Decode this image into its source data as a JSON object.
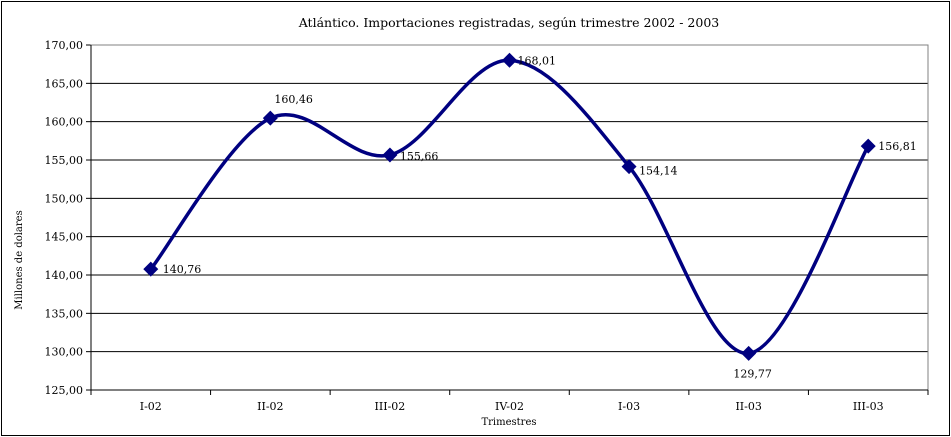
{
  "chart_data": {
    "type": "line",
    "title": "Atlántico. Importaciones registradas, según trimestre 2002 - 2003",
    "xlabel": "Trimestres",
    "ylabel": "Millones de dolares",
    "categories": [
      "I-02",
      "II-02",
      "III-02",
      "IV-02",
      "I-03",
      "II-03",
      "III-03"
    ],
    "series": [
      {
        "values": [
          140.76,
          160.46,
          155.66,
          168.01,
          154.14,
          129.77,
          156.81
        ],
        "value_labels": [
          "140,76",
          "160,46",
          "155,66",
          "168,01",
          "154,14",
          "129,77",
          "156,81"
        ]
      }
    ],
    "ylim": [
      125,
      170
    ],
    "y_ticks": [
      "125,00",
      "130,00",
      "135,00",
      "140,00",
      "145,00",
      "150,00",
      "155,00",
      "160,00",
      "165,00",
      "170,00"
    ],
    "grid": true,
    "smooth": true,
    "marker": "diamond",
    "colors": {
      "line": "#000080",
      "marker": "#000080",
      "grid": "#000000"
    }
  }
}
